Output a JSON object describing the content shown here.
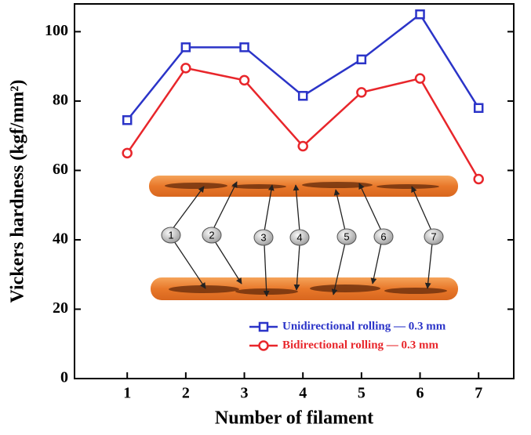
{
  "chart_data": {
    "type": "line",
    "x_label": "Number of filament",
    "y_label": "Vickers hardness (kgf/mm²)",
    "x": [
      1,
      2,
      3,
      4,
      5,
      6,
      7
    ],
    "xlim": [
      0.1,
      7.6
    ],
    "xticks": [
      1,
      2,
      3,
      4,
      5,
      6,
      7
    ],
    "ylim": [
      0,
      108
    ],
    "yticks": [
      0,
      20,
      40,
      60,
      80,
      100
    ],
    "grid": false,
    "legend": "lower right",
    "series": [
      {
        "name": "Unidirectional rolling — 0.3 mm",
        "color": "#2b34c8",
        "marker": "square",
        "values": [
          74.5,
          95.5,
          95.5,
          81.5,
          92,
          105,
          78
        ]
      },
      {
        "name": "Bidirectional rolling — 0.3 mm",
        "color": "#e8262b",
        "marker": "circle",
        "values": [
          65,
          89.5,
          86,
          67,
          82.5,
          86.5,
          57.5
        ]
      }
    ],
    "inset": {
      "labels": [
        "1",
        "2",
        "3",
        "4",
        "5",
        "6",
        "7"
      ]
    }
  }
}
